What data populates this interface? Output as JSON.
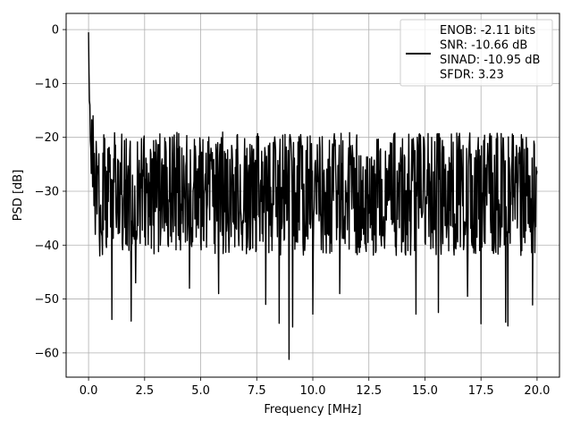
{
  "chart_data": {
    "type": "line",
    "xlabel": "Frequency [MHz]",
    "ylabel": "PSD [dB]",
    "xlim": [
      -1.0,
      21.0
    ],
    "ylim": [
      -64.5,
      3.0
    ],
    "xticks": [
      0.0,
      2.5,
      5.0,
      7.5,
      10.0,
      12.5,
      15.0,
      17.5,
      20.0
    ],
    "xtick_labels": [
      "0.0",
      "2.5",
      "5.0",
      "7.5",
      "10.0",
      "12.5",
      "15.0",
      "17.5",
      "20.0"
    ],
    "yticks": [
      0,
      -10,
      -20,
      -30,
      -40,
      -50,
      -60
    ],
    "ytick_labels": [
      "0",
      "−10",
      "−20",
      "−30",
      "−40",
      "−50",
      "−60"
    ],
    "grid": true,
    "legend_position": "top-right",
    "series": [
      {
        "name": "ENOB: -2.11 bits\nSNR: -10.66 dB\nSINAD: -10.95 dB\nSFDR: 3.23",
        "color": "#000000",
        "x_range": [
          0.0,
          20.0
        ],
        "num_points": 1000,
        "note_shape": "initial peak near 0 dB decaying to noise floor; noise floor about -30 dB, spanning roughly -19 to -45 dB",
        "landmarks": [
          {
            "x": 0.0,
            "y": -0.5
          },
          {
            "x": 0.02,
            "y": -8
          },
          {
            "x": 0.05,
            "y": -14
          },
          {
            "x": 0.1,
            "y": -22
          },
          {
            "x": 0.2,
            "y": -16
          },
          {
            "x": 0.3,
            "y": -38
          },
          {
            "x": 0.5,
            "y": -42
          },
          {
            "x": 1.05,
            "y": -53.8
          },
          {
            "x": 1.9,
            "y": -54.1
          },
          {
            "x": 2.1,
            "y": -47
          },
          {
            "x": 4.5,
            "y": -48
          },
          {
            "x": 5.8,
            "y": -49
          },
          {
            "x": 7.9,
            "y": -51
          },
          {
            "x": 8.5,
            "y": -54.5
          },
          {
            "x": 8.95,
            "y": -61.2
          },
          {
            "x": 9.1,
            "y": -55.2
          },
          {
            "x": 10.0,
            "y": -52.8
          },
          {
            "x": 11.2,
            "y": -49
          },
          {
            "x": 14.6,
            "y": -52.8
          },
          {
            "x": 15.6,
            "y": -52.5
          },
          {
            "x": 16.9,
            "y": -49.5
          },
          {
            "x": 17.5,
            "y": -54.6
          },
          {
            "x": 18.6,
            "y": -54.3
          },
          {
            "x": 18.7,
            "y": -55.0
          },
          {
            "x": 19.8,
            "y": -51.1
          }
        ],
        "noise_floor_db": -30,
        "noise_upper_db": -19,
        "noise_lower_db": -42
      }
    ]
  }
}
